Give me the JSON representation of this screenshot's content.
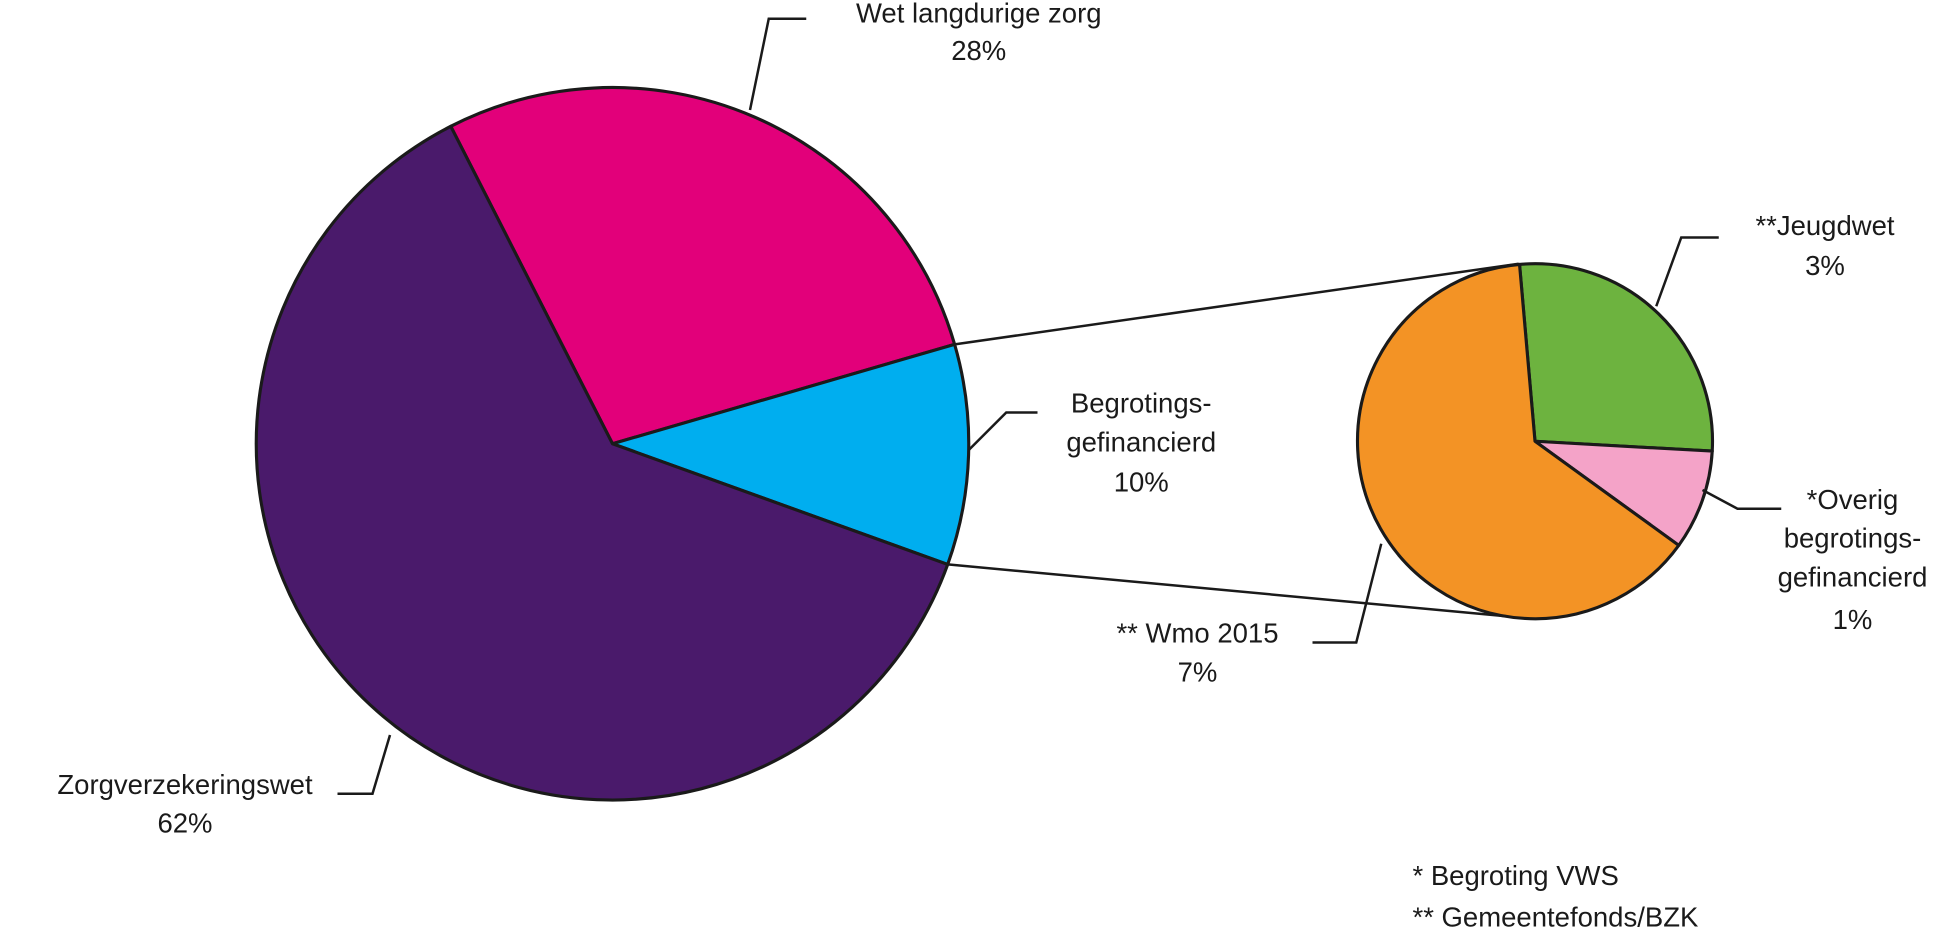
{
  "chart_data": [
    {
      "type": "pie",
      "categories": [
        "Wet langdurige zorg",
        "Begrotings-\ngefinancierd",
        "Zorgverzekeringswet"
      ],
      "values": [
        28,
        10,
        62
      ],
      "value_labels": [
        "28%",
        "10%",
        "62%"
      ],
      "colors": [
        "#e2007a",
        "#00aeef",
        "#4a1a6b"
      ]
    },
    {
      "type": "pie",
      "categories": [
        "**Jeugdwet",
        "*Overig\nbegrotings-\ngefinancierd",
        "** Wmo 2015"
      ],
      "values": [
        3,
        1,
        7
      ],
      "value_labels": [
        "3%",
        "1%",
        "7%"
      ],
      "colors": [
        "#6db33f",
        "#f4a3c8",
        "#f39325"
      ]
    }
  ],
  "footnotes": [
    "* Begroting VWS",
    "** Gemeentefonds/BZK"
  ]
}
